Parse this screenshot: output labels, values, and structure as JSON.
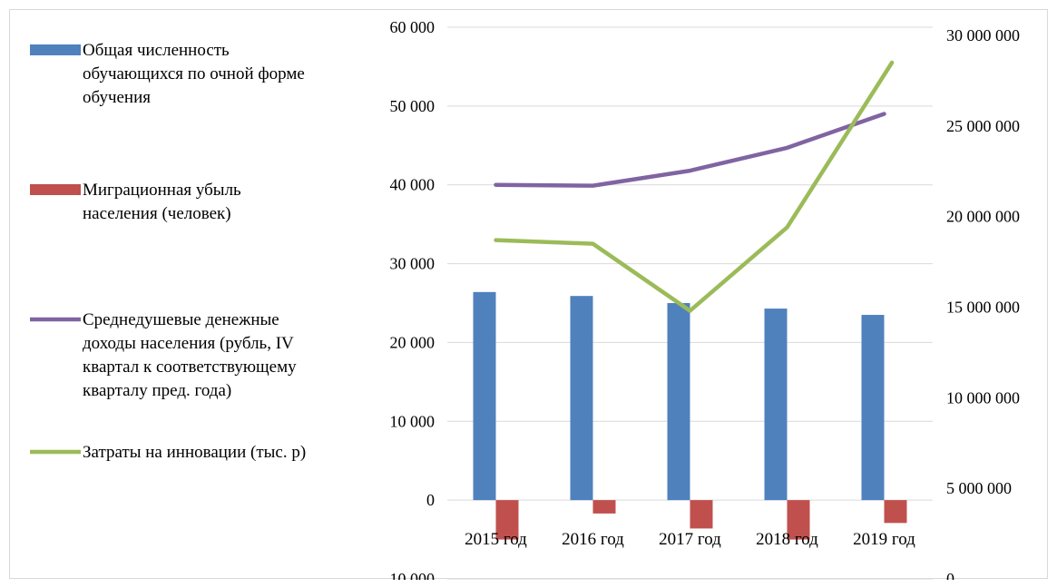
{
  "chart_data": {
    "type": "bar",
    "categories": [
      "2015 год",
      "2016 год",
      "2017 год",
      "2018 год",
      "2019 год"
    ],
    "title": "",
    "xlabel": "",
    "ylabel": "",
    "ylim": [
      -10000,
      60000
    ],
    "y2lim": [
      0,
      30000000
    ],
    "y_ticks": [
      60000,
      50000,
      40000,
      30000,
      20000,
      10000,
      0,
      -10000
    ],
    "y_tick_labels": [
      "60 000",
      "50 000",
      "40 000",
      "30 000",
      "20 000",
      "10 000",
      "0",
      "-10 000"
    ],
    "y2_ticks": [
      30000000,
      25000000,
      20000000,
      15000000,
      10000000,
      5000000,
      0
    ],
    "y2_tick_labels": [
      "30 000 000",
      "25 000 000",
      "20 000 000",
      "15 000 000",
      "10 000 000",
      "5 000 000",
      "0"
    ],
    "grid": true,
    "legend_position": "left",
    "series": [
      {
        "name": "Общая численность обучающихся по очной форме обучения",
        "legend_lines": [
          "Общая численность",
          "обучающихся по очной форме",
          "обучения"
        ],
        "type": "bar",
        "axis": "primary",
        "color": "#4F81BD",
        "values": [
          26400,
          25900,
          25000,
          24300,
          23500
        ]
      },
      {
        "name": "Миграционная убыль населения (человек)",
        "legend_lines": [
          "Миграционная убыль",
          "населения (человек)"
        ],
        "type": "bar",
        "axis": "primary",
        "color": "#C0504D",
        "values": [
          -5000,
          -1700,
          -3600,
          -5000,
          -2900
        ]
      },
      {
        "name": "Среднедушевые денежные доходы населения (рубль, IV квартал к соответствующему кварталу пред. года)",
        "legend_lines": [
          "Среднедушевые денежные",
          "доходы населения (рубль, IV",
          "квартал к соответствующему",
          "кварталу пред. года)"
        ],
        "type": "line",
        "axis": "primary",
        "color": "#8064A2",
        "values": [
          40000,
          39900,
          41800,
          44700,
          49000
        ]
      },
      {
        "name": "Затраты на инновации (тыс. р)",
        "legend_lines": [
          "Затраты на инновации (тыс. р)"
        ],
        "type": "line",
        "axis": "secondary",
        "color": "#9BBB59",
        "x_offset": [
          0,
          0,
          0,
          0,
          0.08
        ],
        "values": [
          18700000,
          18500000,
          14800000,
          19400000,
          28500000
        ]
      }
    ]
  }
}
